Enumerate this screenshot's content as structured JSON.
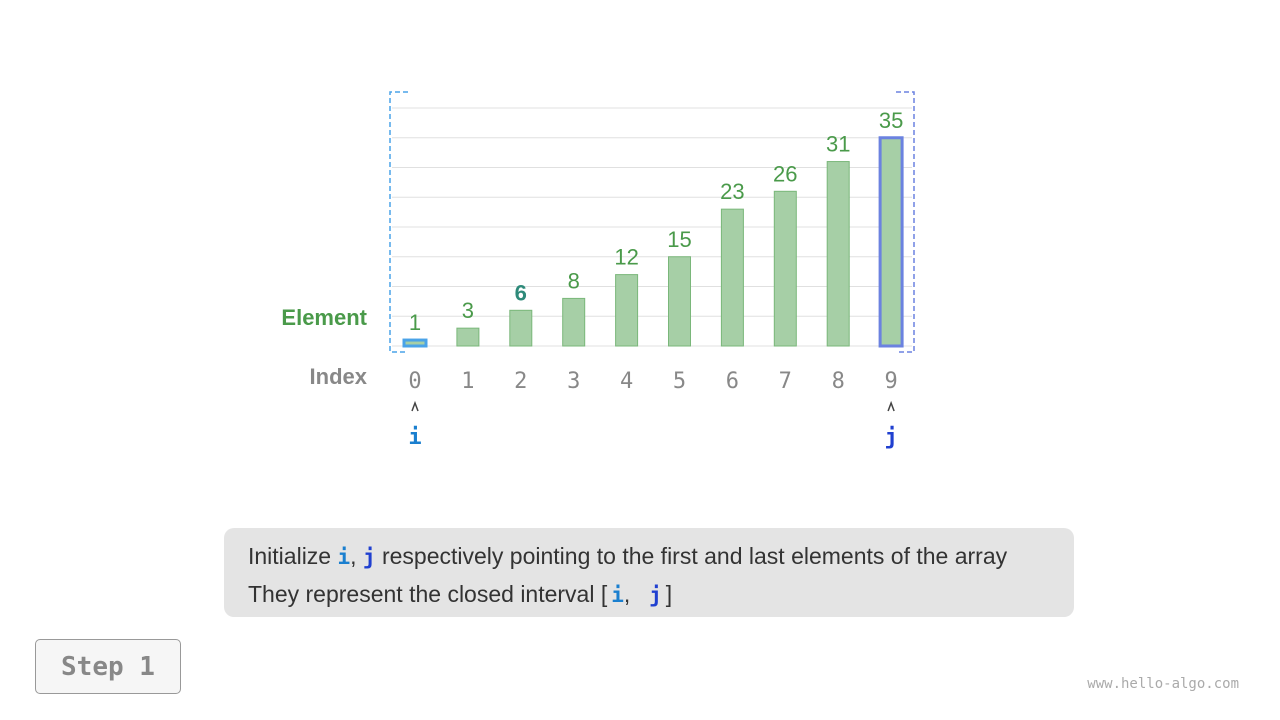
{
  "chart_data": {
    "type": "bar",
    "categories": [
      "0",
      "1",
      "2",
      "3",
      "4",
      "5",
      "6",
      "7",
      "8",
      "9"
    ],
    "values": [
      1,
      3,
      6,
      8,
      12,
      15,
      23,
      26,
      31,
      35
    ],
    "ylim": [
      0,
      40
    ],
    "grid": true,
    "row_labels": {
      "element": "Element",
      "index": "Index"
    },
    "pointers": [
      {
        "name": "i",
        "index": 0,
        "color": "#1a7fcf"
      },
      {
        "name": "j",
        "index": 9,
        "color": "#2040d0"
      }
    ],
    "colors": {
      "bar": "#a6cfa6",
      "bar_edge": "#7ab77a",
      "label": "#4a9a4a",
      "highlight_label": "#2e8a7a",
      "index_text": "#888888",
      "i_highlight": "#4aa3e8",
      "j_highlight": "#6b82e0"
    },
    "highlight_label_index": 2
  },
  "caption": {
    "line1": {
      "pre": "Initialize ",
      "i": "i",
      "sep": ", ",
      "j": "j",
      "post": " respectively pointing to the first and last elements of the array"
    },
    "line2": {
      "pre": "They represent the closed interval ",
      "open": "[",
      "i": "i",
      "sep": ",  ",
      "j": "j",
      "close": "]"
    }
  },
  "step_label": "Step 1",
  "watermark": "www.hello-algo.com"
}
